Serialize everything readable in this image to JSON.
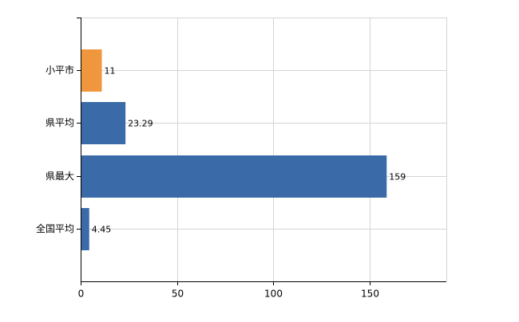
{
  "chart_data": {
    "type": "bar",
    "orientation": "horizontal",
    "categories": [
      "小平市",
      "県平均",
      "県最大",
      "全国平均"
    ],
    "values": [
      11,
      23.29,
      159,
      4.45
    ],
    "colors": [
      "#f0963c",
      "#3a6aa8",
      "#3a6aa8",
      "#3a6aa8"
    ],
    "xlim": [
      0,
      190
    ],
    "xticks": [
      0,
      50,
      100,
      150
    ],
    "grid": true
  }
}
